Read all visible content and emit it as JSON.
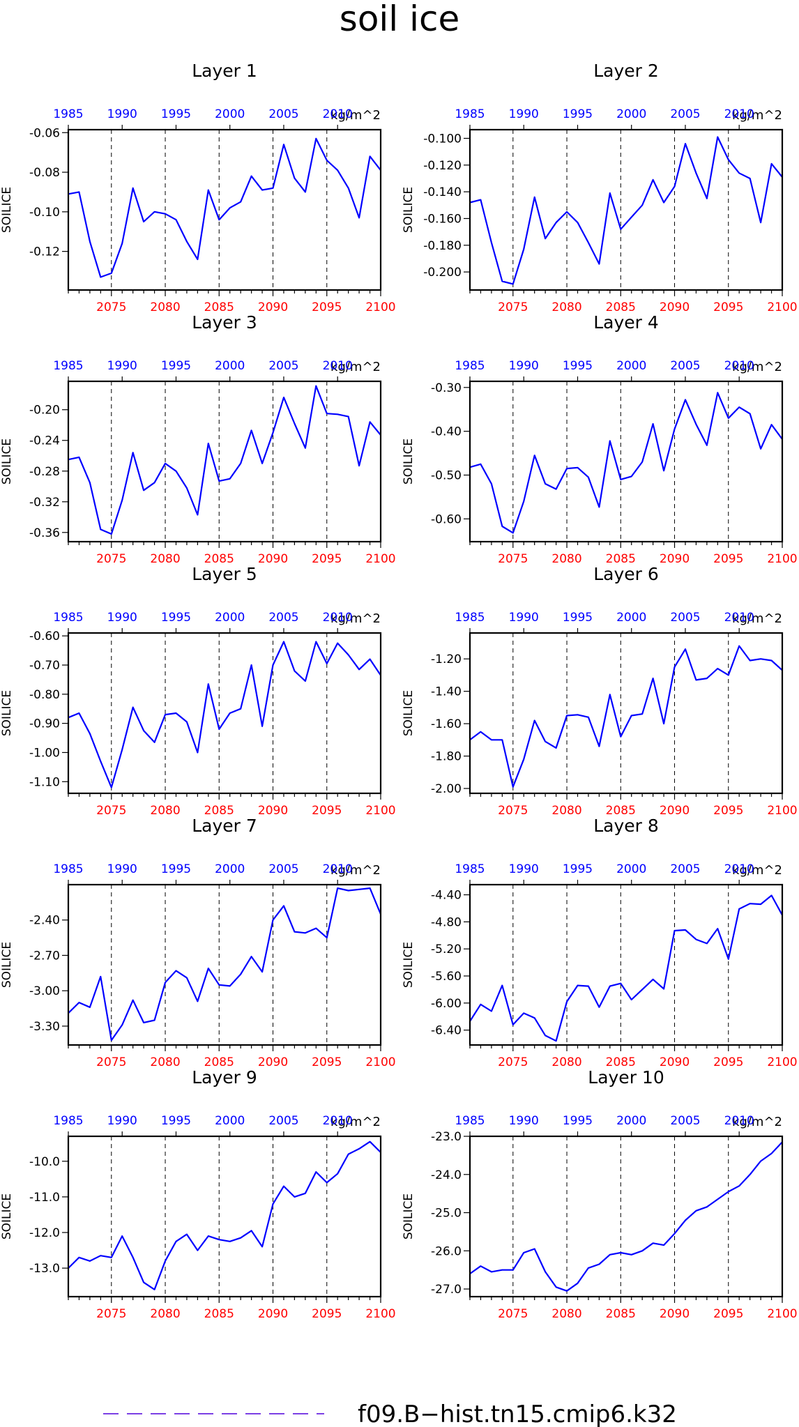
{
  "title": "soil ice",
  "units": "kg/m^2",
  "ylabel": "SOILICE",
  "colors": {
    "line": "#0000ff",
    "bottom_ticks": "#ff0000",
    "top_ticks": "#0000ff",
    "axes": "#000000",
    "legend_line": "#7b3fe4"
  },
  "legend": {
    "label": "f09.B−hist.tn15.cmip6.k32"
  },
  "chart_data": [
    {
      "type": "line",
      "title": "Layer 1",
      "x": [
        2071,
        2072,
        2073,
        2074,
        2075,
        2076,
        2077,
        2078,
        2079,
        2080,
        2081,
        2082,
        2083,
        2084,
        2085,
        2086,
        2087,
        2088,
        2089,
        2090,
        2091,
        2092,
        2093,
        2094,
        2095,
        2096,
        2097,
        2098,
        2099,
        2100
      ],
      "values": [
        -0.091,
        -0.09,
        -0.115,
        -0.133,
        -0.131,
        -0.116,
        -0.088,
        -0.105,
        -0.1,
        -0.101,
        -0.104,
        -0.115,
        -0.124,
        -0.089,
        -0.104,
        -0.098,
        -0.095,
        -0.082,
        -0.089,
        -0.088,
        -0.066,
        -0.083,
        -0.09,
        -0.063,
        -0.074,
        -0.079,
        -0.088,
        -0.103,
        -0.072,
        -0.079
      ],
      "yticks": [
        "-0.06",
        "-0.08",
        "-0.10",
        "-0.12"
      ],
      "ytick_values": [
        -0.06,
        -0.08,
        -0.1,
        -0.12
      ],
      "ylim": [
        -0.1395,
        -0.0585
      ]
    },
    {
      "type": "line",
      "title": "Layer 2",
      "x": [
        2071,
        2072,
        2073,
        2074,
        2075,
        2076,
        2077,
        2078,
        2079,
        2080,
        2081,
        2082,
        2083,
        2084,
        2085,
        2086,
        2087,
        2088,
        2089,
        2090,
        2091,
        2092,
        2093,
        2094,
        2095,
        2096,
        2097,
        2098,
        2099,
        2100
      ],
      "values": [
        -0.148,
        -0.146,
        -0.178,
        -0.207,
        -0.209,
        -0.183,
        -0.144,
        -0.175,
        -0.163,
        -0.155,
        -0.163,
        -0.178,
        -0.194,
        -0.141,
        -0.168,
        -0.159,
        -0.15,
        -0.131,
        -0.148,
        -0.136,
        -0.104,
        -0.126,
        -0.145,
        -0.099,
        -0.116,
        -0.126,
        -0.13,
        -0.163,
        -0.119,
        -0.129
      ],
      "yticks": [
        "-0.100",
        "-0.120",
        "-0.140",
        "-0.160",
        "-0.180",
        "-0.200"
      ],
      "ytick_values": [
        -0.1,
        -0.12,
        -0.14,
        -0.16,
        -0.18,
        -0.2
      ],
      "ylim": [
        -0.2135,
        -0.0935
      ]
    },
    {
      "type": "line",
      "title": "Layer 3",
      "x": [
        2071,
        2072,
        2073,
        2074,
        2075,
        2076,
        2077,
        2078,
        2079,
        2080,
        2081,
        2082,
        2083,
        2084,
        2085,
        2086,
        2087,
        2088,
        2089,
        2090,
        2091,
        2092,
        2093,
        2094,
        2095,
        2096,
        2097,
        2098,
        2099,
        2100
      ],
      "values": [
        -0.265,
        -0.262,
        -0.295,
        -0.356,
        -0.362,
        -0.318,
        -0.256,
        -0.305,
        -0.295,
        -0.27,
        -0.28,
        -0.302,
        -0.337,
        -0.244,
        -0.293,
        -0.29,
        -0.27,
        -0.227,
        -0.27,
        -0.23,
        -0.184,
        -0.218,
        -0.25,
        -0.169,
        -0.205,
        -0.206,
        -0.209,
        -0.273,
        -0.216,
        -0.233
      ],
      "yticks": [
        "-0.20",
        "-0.24",
        "-0.28",
        "-0.32",
        "-0.36"
      ],
      "ytick_values": [
        -0.2,
        -0.24,
        -0.28,
        -0.32,
        -0.36
      ],
      "ylim": [
        -0.372,
        -0.163
      ]
    },
    {
      "type": "line",
      "title": "Layer 4",
      "x": [
        2071,
        2072,
        2073,
        2074,
        2075,
        2076,
        2077,
        2078,
        2079,
        2080,
        2081,
        2082,
        2083,
        2084,
        2085,
        2086,
        2087,
        2088,
        2089,
        2090,
        2091,
        2092,
        2093,
        2094,
        2095,
        2096,
        2097,
        2098,
        2099,
        2100
      ],
      "values": [
        -0.482,
        -0.475,
        -0.52,
        -0.617,
        -0.632,
        -0.56,
        -0.455,
        -0.52,
        -0.532,
        -0.485,
        -0.483,
        -0.505,
        -0.573,
        -0.422,
        -0.51,
        -0.503,
        -0.47,
        -0.383,
        -0.49,
        -0.395,
        -0.328,
        -0.384,
        -0.432,
        -0.312,
        -0.37,
        -0.345,
        -0.36,
        -0.44,
        -0.385,
        -0.418
      ],
      "yticks": [
        "-0.30",
        "-0.40",
        "-0.50",
        "-0.60"
      ],
      "ytick_values": [
        -0.3,
        -0.4,
        -0.5,
        -0.6
      ],
      "ylim": [
        -0.652,
        -0.286
      ]
    },
    {
      "type": "line",
      "title": "Layer 5",
      "x": [
        2071,
        2072,
        2073,
        2074,
        2075,
        2076,
        2077,
        2078,
        2079,
        2080,
        2081,
        2082,
        2083,
        2084,
        2085,
        2086,
        2087,
        2088,
        2089,
        2090,
        2091,
        2092,
        2093,
        2094,
        2095,
        2096,
        2097,
        2098,
        2099,
        2100
      ],
      "values": [
        -0.88,
        -0.865,
        -0.935,
        -1.03,
        -1.12,
        -0.99,
        -0.845,
        -0.925,
        -0.965,
        -0.87,
        -0.865,
        -0.895,
        -1.0,
        -0.765,
        -0.92,
        -0.865,
        -0.85,
        -0.7,
        -0.91,
        -0.7,
        -0.62,
        -0.72,
        -0.755,
        -0.62,
        -0.695,
        -0.625,
        -0.665,
        -0.715,
        -0.68,
        -0.735
      ],
      "yticks": [
        "-0.60",
        "-0.70",
        "-0.80",
        "-0.90",
        "-1.00",
        "-1.10"
      ],
      "ytick_values": [
        -0.6,
        -0.7,
        -0.8,
        -0.9,
        -1.0,
        -1.1
      ],
      "ylim": [
        -1.14,
        -0.59
      ]
    },
    {
      "type": "line",
      "title": "Layer 6",
      "x": [
        2071,
        2072,
        2073,
        2074,
        2075,
        2076,
        2077,
        2078,
        2079,
        2080,
        2081,
        2082,
        2083,
        2084,
        2085,
        2086,
        2087,
        2088,
        2089,
        2090,
        2091,
        2092,
        2093,
        2094,
        2095,
        2096,
        2097,
        2098,
        2099,
        2100
      ],
      "values": [
        -1.7,
        -1.65,
        -1.7,
        -1.7,
        -1.99,
        -1.82,
        -1.58,
        -1.71,
        -1.75,
        -1.55,
        -1.545,
        -1.56,
        -1.74,
        -1.42,
        -1.68,
        -1.55,
        -1.54,
        -1.32,
        -1.6,
        -1.25,
        -1.14,
        -1.33,
        -1.32,
        -1.26,
        -1.3,
        -1.12,
        -1.21,
        -1.2,
        -1.21,
        -1.27
      ],
      "yticks": [
        "-1.20",
        "-1.40",
        "-1.60",
        "-1.80",
        "-2.00"
      ],
      "ytick_values": [
        -1.2,
        -1.4,
        -1.6,
        -1.8,
        -2.0
      ],
      "ylim": [
        -2.03,
        -1.04
      ]
    },
    {
      "type": "line",
      "title": "Layer 7",
      "x": [
        2071,
        2072,
        2073,
        2074,
        2075,
        2076,
        2077,
        2078,
        2079,
        2080,
        2081,
        2082,
        2083,
        2084,
        2085,
        2086,
        2087,
        2088,
        2089,
        2090,
        2091,
        2092,
        2093,
        2094,
        2095,
        2096,
        2097,
        2098,
        2099,
        2100
      ],
      "values": [
        -3.19,
        -3.1,
        -3.14,
        -2.88,
        -3.42,
        -3.29,
        -3.08,
        -3.27,
        -3.25,
        -2.93,
        -2.83,
        -2.89,
        -3.09,
        -2.81,
        -2.95,
        -2.96,
        -2.86,
        -2.71,
        -2.84,
        -2.4,
        -2.28,
        -2.5,
        -2.51,
        -2.47,
        -2.55,
        -2.13,
        -2.15,
        -2.14,
        -2.13,
        -2.35
      ],
      "yticks": [
        "-2.40",
        "-2.70",
        "-3.00",
        "-3.30"
      ],
      "ytick_values": [
        -2.4,
        -2.7,
        -3.0,
        -3.3
      ],
      "ylim": [
        -3.46,
        -2.1
      ]
    },
    {
      "type": "line",
      "title": "Layer 8",
      "x": [
        2071,
        2072,
        2073,
        2074,
        2075,
        2076,
        2077,
        2078,
        2079,
        2080,
        2081,
        2082,
        2083,
        2084,
        2085,
        2086,
        2087,
        2088,
        2089,
        2090,
        2091,
        2092,
        2093,
        2094,
        2095,
        2096,
        2097,
        2098,
        2099,
        2100
      ],
      "values": [
        -6.27,
        -6.02,
        -6.12,
        -5.74,
        -6.32,
        -6.15,
        -6.22,
        -6.48,
        -6.56,
        -5.98,
        -5.74,
        -5.75,
        -6.06,
        -5.75,
        -5.71,
        -5.95,
        -5.8,
        -5.65,
        -5.79,
        -4.93,
        -4.92,
        -5.06,
        -5.12,
        -4.9,
        -5.35,
        -4.61,
        -4.53,
        -4.54,
        -4.41,
        -4.7
      ],
      "yticks": [
        "-4.40",
        "-4.80",
        "-5.20",
        "-5.60",
        "-6.00",
        "-6.40"
      ],
      "ytick_values": [
        -4.4,
        -4.8,
        -5.2,
        -5.6,
        -6.0,
        -6.4
      ],
      "ylim": [
        -6.62,
        -4.25
      ]
    },
    {
      "type": "line",
      "title": "Layer 9",
      "x": [
        2071,
        2072,
        2073,
        2074,
        2075,
        2076,
        2077,
        2078,
        2079,
        2080,
        2081,
        2082,
        2083,
        2084,
        2085,
        2086,
        2087,
        2088,
        2089,
        2090,
        2091,
        2092,
        2093,
        2094,
        2095,
        2096,
        2097,
        2098,
        2099,
        2100
      ],
      "values": [
        -13.0,
        -12.7,
        -12.8,
        -12.65,
        -12.7,
        -12.1,
        -12.7,
        -13.4,
        -13.6,
        -12.8,
        -12.25,
        -12.05,
        -12.5,
        -12.1,
        -12.2,
        -12.25,
        -12.15,
        -11.95,
        -12.4,
        -11.2,
        -10.7,
        -11.0,
        -10.9,
        -10.3,
        -10.6,
        -10.35,
        -9.8,
        -9.65,
        -9.45,
        -9.75
      ],
      "yticks": [
        "-10.0",
        "-11.0",
        "-12.0",
        "-13.0"
      ],
      "ytick_values": [
        -10.0,
        -11.0,
        -12.0,
        -13.0
      ],
      "ylim": [
        -13.8,
        -9.3
      ]
    },
    {
      "type": "line",
      "title": "Layer 10",
      "x": [
        2071,
        2072,
        2073,
        2074,
        2075,
        2076,
        2077,
        2078,
        2079,
        2080,
        2081,
        2082,
        2083,
        2084,
        2085,
        2086,
        2087,
        2088,
        2089,
        2090,
        2091,
        2092,
        2093,
        2094,
        2095,
        2096,
        2097,
        2098,
        2099,
        2100
      ],
      "values": [
        -26.6,
        -26.4,
        -26.55,
        -26.5,
        -26.5,
        -26.05,
        -25.95,
        -26.55,
        -26.95,
        -27.05,
        -26.85,
        -26.45,
        -26.35,
        -26.1,
        -26.05,
        -26.1,
        -26.0,
        -25.8,
        -25.85,
        -25.55,
        -25.2,
        -24.95,
        -24.85,
        -24.65,
        -24.45,
        -24.3,
        -24.0,
        -23.65,
        -23.45,
        -23.15
      ],
      "yticks": [
        "-23.0",
        "-24.0",
        "-25.0",
        "-26.0",
        "-27.0"
      ],
      "ytick_values": [
        -23.0,
        -24.0,
        -25.0,
        -26.0,
        -27.0
      ],
      "ylim": [
        -27.2,
        -23.0
      ]
    }
  ],
  "x_axis": {
    "xlim": [
      2071,
      2100
    ],
    "bottom_ticks": [
      "2075",
      "2080",
      "2085",
      "2090",
      "2095",
      "2100"
    ],
    "bottom_tick_values": [
      2075,
      2080,
      2085,
      2090,
      2095,
      2100
    ],
    "top_ticks": [
      "1985",
      "1990",
      "1995",
      "2000",
      "2005",
      "2010"
    ],
    "top_tick_positions_in_x": [
      2071,
      2076,
      2081,
      2086,
      2091,
      2096
    ],
    "dashed_verticals_at": [
      2075,
      2080,
      2085,
      2090,
      2095
    ]
  }
}
